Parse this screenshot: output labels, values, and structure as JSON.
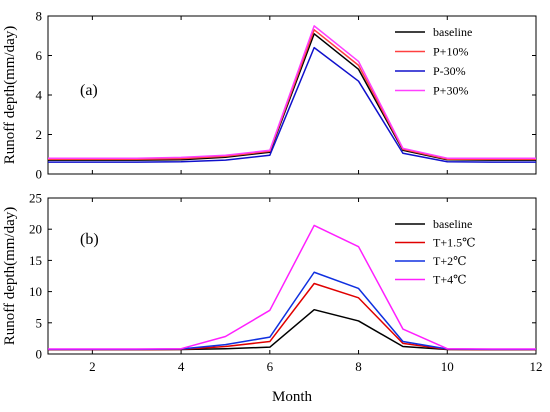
{
  "chart_data": [
    {
      "type": "line",
      "panel_label": "(a)",
      "ylabel": "Runoff depth(mm/day)",
      "xlim": [
        1,
        12
      ],
      "ylim": [
        0,
        8
      ],
      "yticks": [
        0,
        2,
        4,
        6,
        8
      ],
      "xticks": [
        2,
        4,
        6,
        8,
        10,
        12
      ],
      "show_xtick_labels": false,
      "legend_position": "top-right",
      "x": [
        1,
        2,
        3,
        4,
        5,
        6,
        7,
        8,
        9,
        10,
        11,
        12
      ],
      "series": [
        {
          "name": "baseline",
          "color": "#000000",
          "values": [
            0.7,
            0.7,
            0.7,
            0.72,
            0.85,
            1.1,
            7.1,
            5.3,
            1.2,
            0.72,
            0.7,
            0.7
          ]
        },
        {
          "name": "P+10%",
          "color": "#ff4040",
          "values": [
            0.75,
            0.75,
            0.75,
            0.78,
            0.9,
            1.15,
            7.3,
            5.5,
            1.25,
            0.75,
            0.75,
            0.75
          ]
        },
        {
          "name": "P-30%",
          "color": "#1010cc",
          "values": [
            0.6,
            0.6,
            0.6,
            0.62,
            0.7,
            0.95,
            6.4,
            4.7,
            1.05,
            0.62,
            0.6,
            0.6
          ]
        },
        {
          "name": "P+30%",
          "color": "#ff40ff",
          "values": [
            0.8,
            0.8,
            0.8,
            0.84,
            0.95,
            1.2,
            7.5,
            5.7,
            1.3,
            0.8,
            0.8,
            0.8
          ]
        }
      ]
    },
    {
      "type": "line",
      "panel_label": "(b)",
      "ylabel": "Runoff depth(mm/day)",
      "xlabel": "Month",
      "xlim": [
        1,
        12
      ],
      "ylim": [
        0,
        25
      ],
      "yticks": [
        0,
        5,
        10,
        15,
        20,
        25
      ],
      "xticks": [
        2,
        4,
        6,
        8,
        10,
        12
      ],
      "show_xtick_labels": true,
      "legend_position": "top-right",
      "x": [
        1,
        2,
        3,
        4,
        5,
        6,
        7,
        8,
        9,
        10,
        11,
        12
      ],
      "series": [
        {
          "name": "baseline",
          "color": "#000000",
          "values": [
            0.7,
            0.7,
            0.7,
            0.72,
            0.85,
            1.1,
            7.1,
            5.3,
            1.2,
            0.72,
            0.7,
            0.7
          ]
        },
        {
          "name": "T+1.5℃",
          "color": "#e00000",
          "values": [
            0.7,
            0.7,
            0.7,
            0.75,
            1.2,
            2.0,
            11.3,
            9.0,
            1.7,
            0.75,
            0.7,
            0.7
          ]
        },
        {
          "name": "T+2℃",
          "color": "#1030e0",
          "values": [
            0.75,
            0.75,
            0.75,
            0.8,
            1.5,
            2.7,
            13.1,
            10.5,
            2.0,
            0.8,
            0.75,
            0.75
          ]
        },
        {
          "name": "T+4℃",
          "color": "#ff20ff",
          "values": [
            0.8,
            0.8,
            0.8,
            0.85,
            2.8,
            7.0,
            20.6,
            17.2,
            4.0,
            0.85,
            0.8,
            0.8
          ]
        }
      ]
    }
  ]
}
